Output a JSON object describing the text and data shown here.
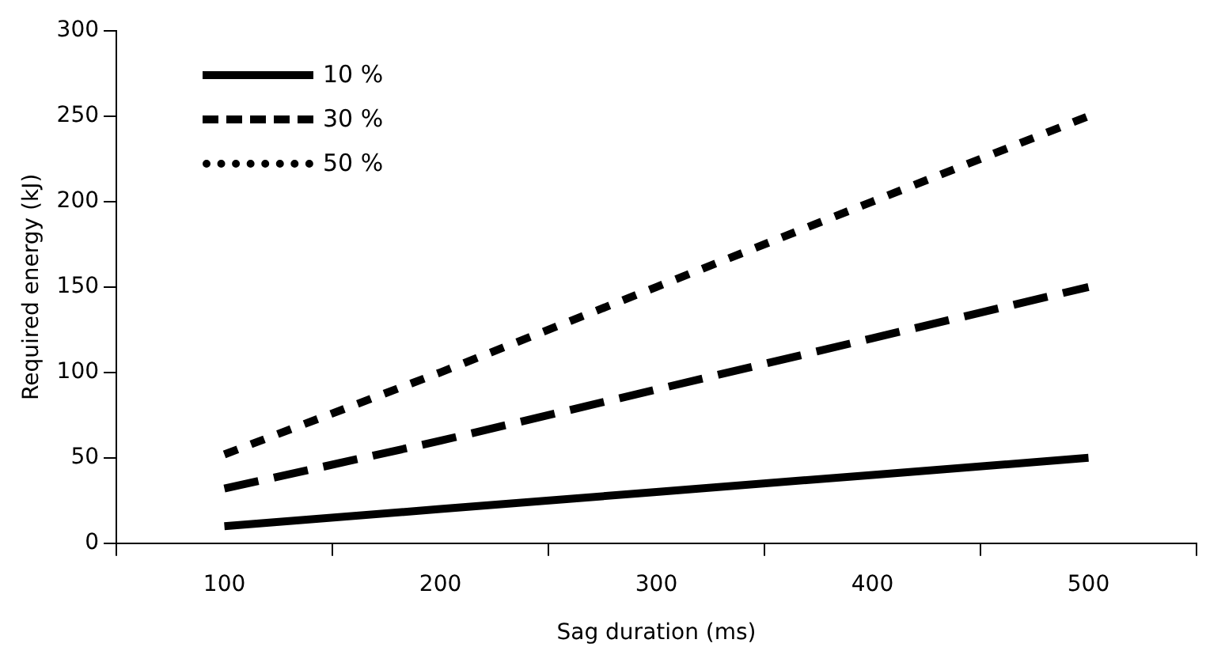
{
  "chart_data": {
    "type": "line",
    "xlabel": "Sag duration (ms)",
    "ylabel": "Required energy (kJ)",
    "categories": [
      "100",
      "200",
      "300",
      "400",
      "500"
    ],
    "series": [
      {
        "name": "10 %",
        "color": "#000000",
        "line_style": "solid",
        "values": [
          10,
          20,
          30,
          40,
          50
        ]
      },
      {
        "name": "30 %",
        "color": "#000000",
        "line_style": "dashed",
        "values": [
          32,
          60,
          90,
          120,
          150
        ]
      },
      {
        "name": "50 %",
        "color": "#000000",
        "line_style": "dotted",
        "values": [
          52,
          100,
          150,
          200,
          250
        ]
      }
    ],
    "ylim": [
      0,
      300
    ],
    "yticks": [
      0,
      50,
      100,
      150,
      200,
      250,
      300
    ],
    "grid": false,
    "legend": "top left",
    "marker": "none"
  }
}
